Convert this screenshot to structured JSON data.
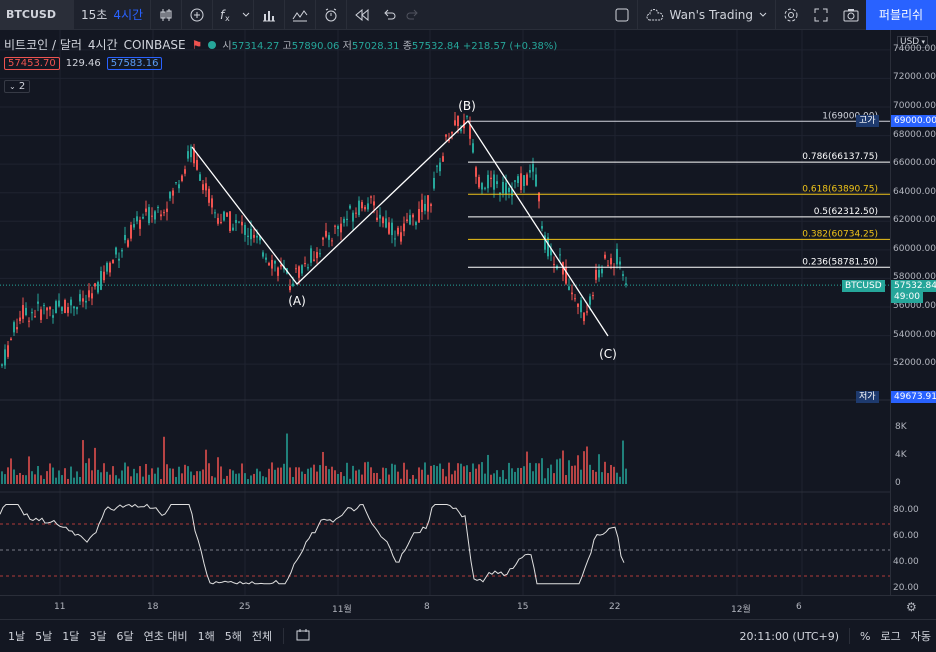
{
  "toolbar": {
    "symbol": "BTCUSD",
    "interval_a": "15초",
    "interval_b": "4시간",
    "layout_name": "Wan's Trading",
    "publish_label": "퍼블리쉬"
  },
  "legend": {
    "title": "비트코인 / 달러",
    "interval": "4시간",
    "exchange": "COINBASE",
    "open_label": "시",
    "open": "57314.27",
    "high_label": "고",
    "high": "57890.06",
    "low_label": "저",
    "low": "57028.31",
    "close_label": "종",
    "close": "57532.84",
    "change": "+218.57 (+0.38%)",
    "bid": "57453.70",
    "spread": "129.46",
    "ask": "57583.16",
    "collapsed_count": "2"
  },
  "price_axis": {
    "currency": "USD",
    "ticks": [
      "74000.00",
      "72000.00",
      "70000.00",
      "68000.00",
      "66000.00",
      "64000.00",
      "62000.00",
      "60000.00",
      "58000.00",
      "56000.00",
      "54000.00",
      "52000.00"
    ],
    "high_tag_label": "고가",
    "high_tag_value": "69000.00",
    "low_tag_label": "저가",
    "low_tag_value": "49673.91",
    "symbol_tag": "BTCUSD",
    "last_price": "57532.84",
    "countdown": "49:00"
  },
  "volume_axis": [
    "8K",
    "4K",
    "0"
  ],
  "rsi_axis": [
    "80.00",
    "60.00",
    "40.00",
    "20.00"
  ],
  "fib_levels": [
    {
      "ratio": "1",
      "price": "69000.00",
      "color": "#d1d4dc"
    },
    {
      "ratio": "0.786",
      "price": "66137.75",
      "color": "#ffffff"
    },
    {
      "ratio": "0.618",
      "price": "63890.75",
      "color": "#f0c419"
    },
    {
      "ratio": "0.5",
      "price": "62312.50",
      "color": "#ffffff"
    },
    {
      "ratio": "0.382",
      "price": "60734.25",
      "color": "#f0c419"
    },
    {
      "ratio": "0.236",
      "price": "58781.50",
      "color": "#ffffff"
    }
  ],
  "wave_labels": {
    "a": "(A)",
    "b": "(B)",
    "c": "(C)"
  },
  "time_axis": [
    "11",
    "18",
    "25",
    "11월",
    "8",
    "15",
    "22",
    "12월",
    "6"
  ],
  "bottombar": {
    "ranges": [
      "1날",
      "5날",
      "1달",
      "3달",
      "6달",
      "연초 대비",
      "1해",
      "5해",
      "전체"
    ],
    "time": "20:11:00 (UTC+9)",
    "percent": "%",
    "log": "로그",
    "auto": "자동"
  },
  "colors": {
    "up": "#26a69a",
    "down": "#ef5350",
    "accent": "#2962ff",
    "bg": "#131722"
  }
}
